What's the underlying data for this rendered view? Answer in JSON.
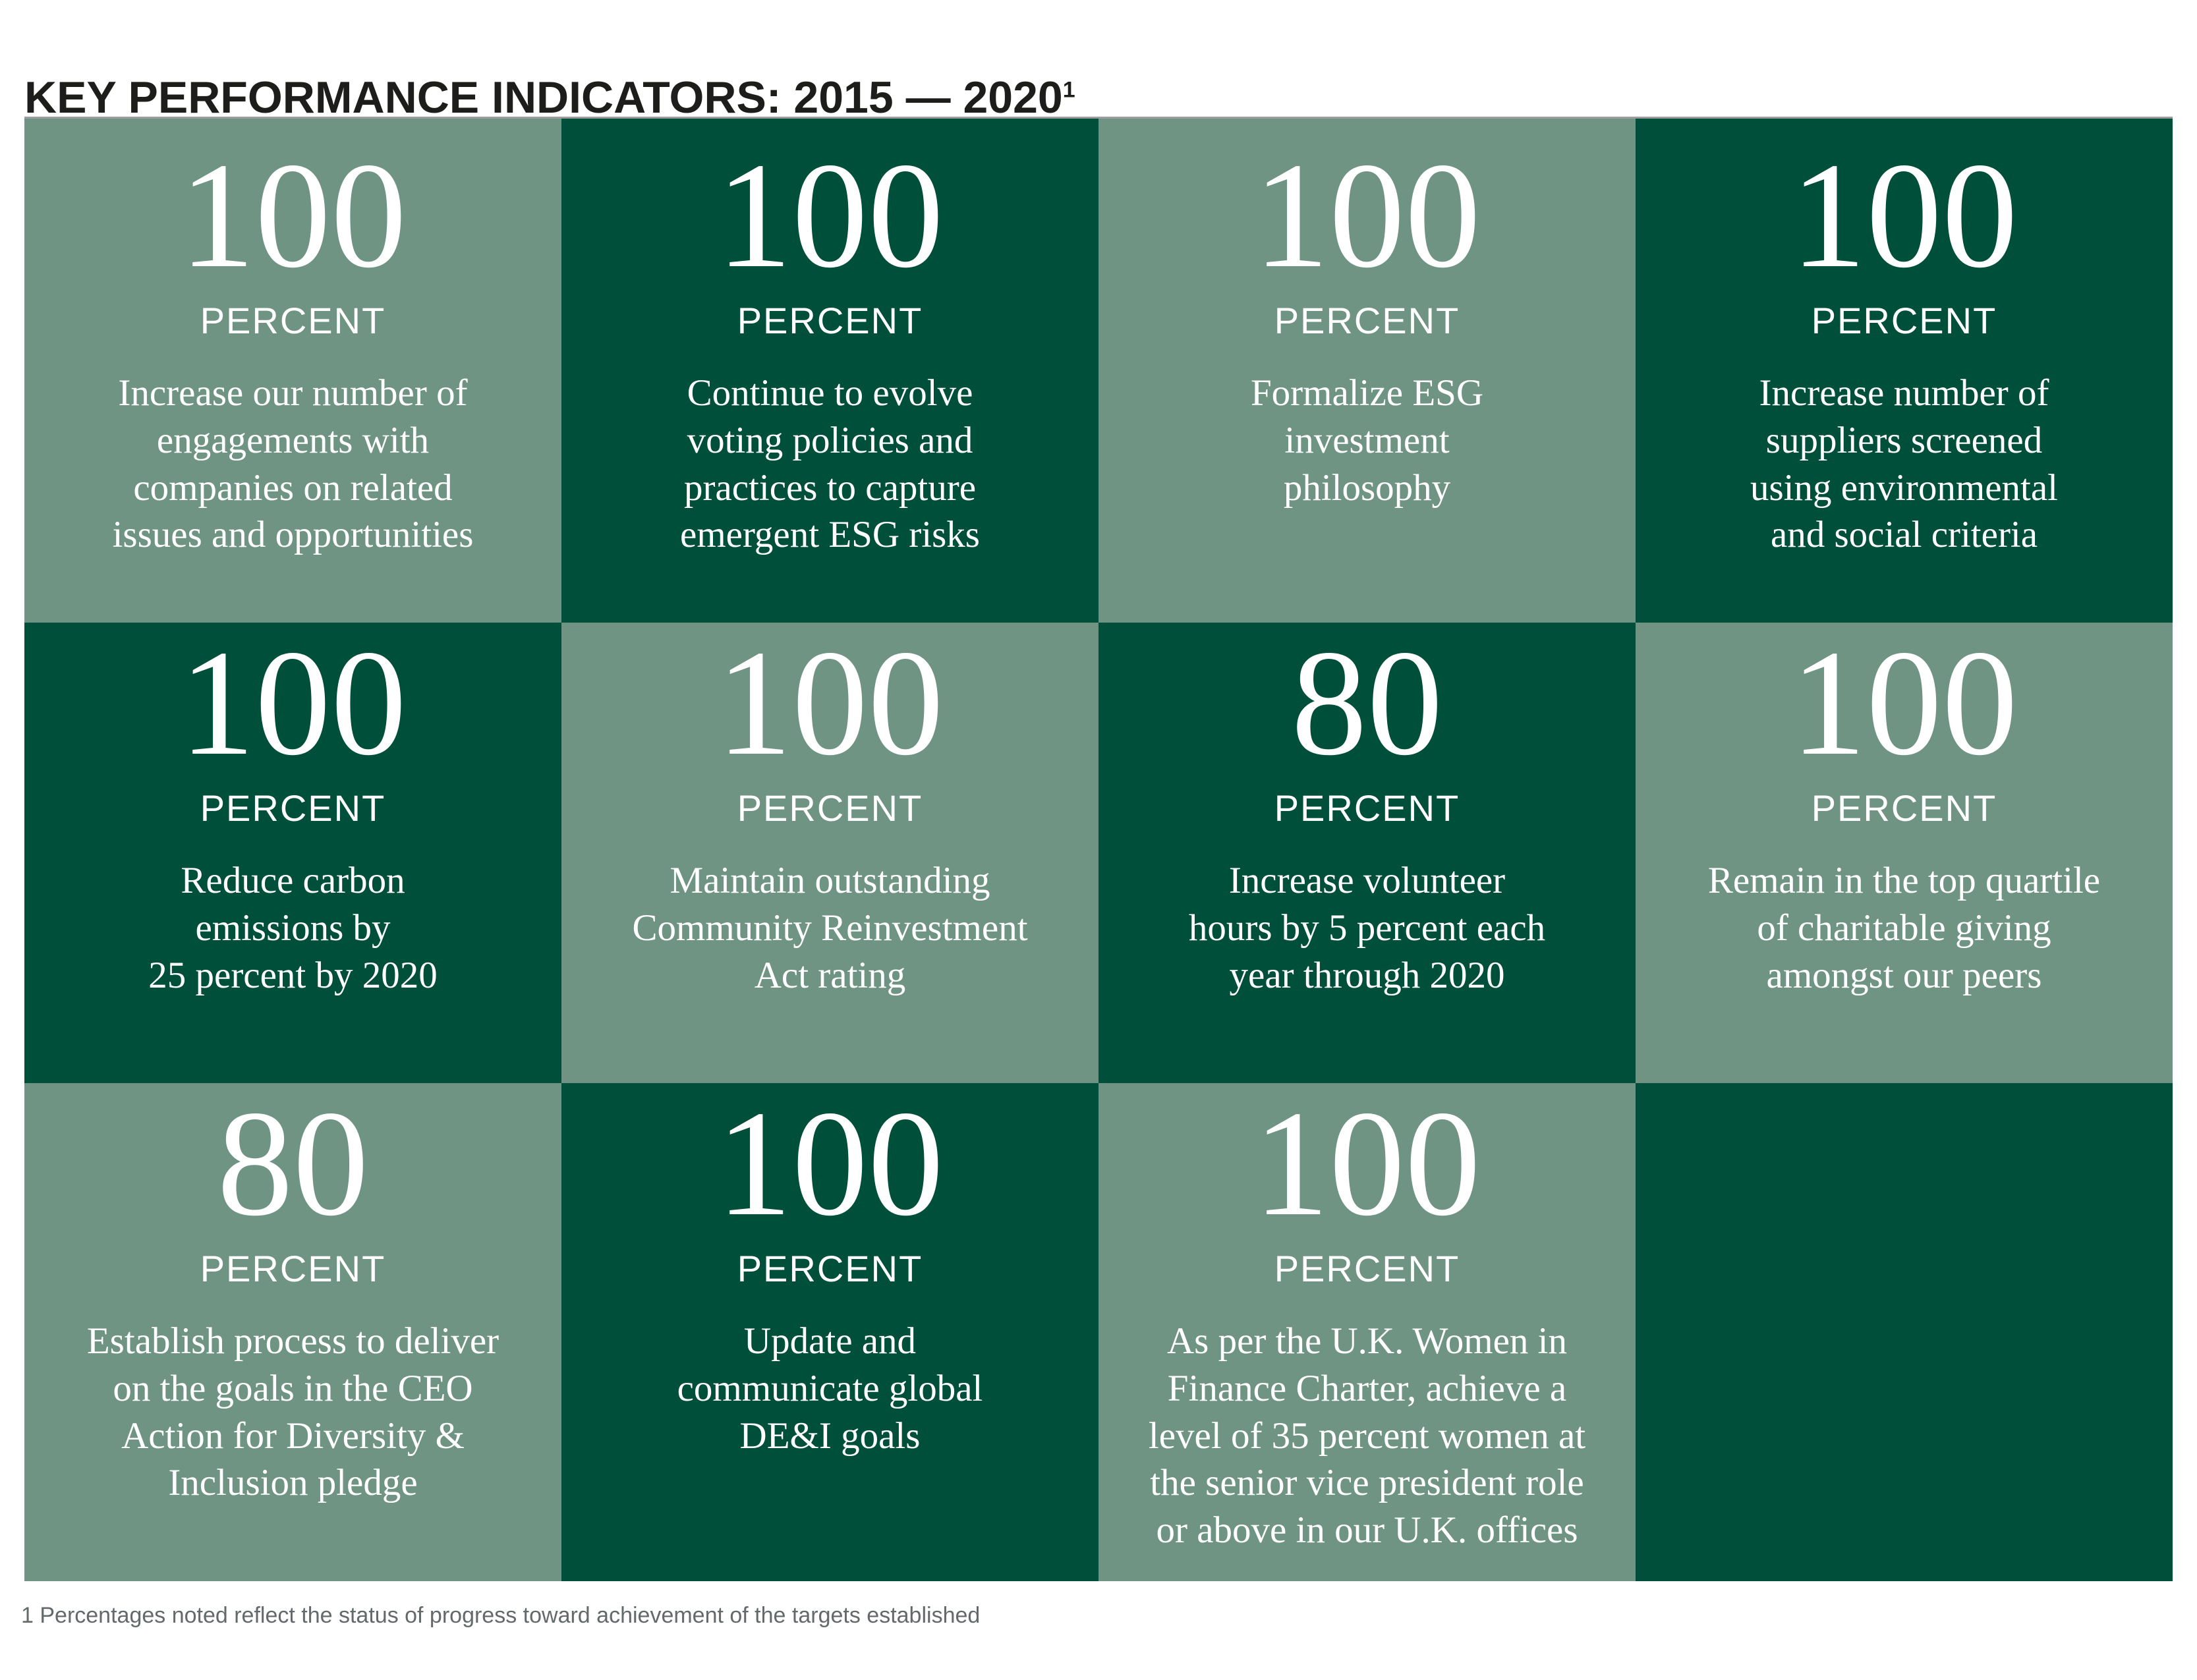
{
  "page": {
    "title": "KEY PERFORMANCE INDICATORS: 2015 — 2020",
    "title_superscript": "1",
    "footnote": "1 Percentages noted reflect the status of progress toward achievement of the targets established"
  },
  "colors": {
    "dark_green": "#004F3A",
    "sage_green": "#6F9484",
    "tile_text": "#FFFFFF",
    "title_text": "#1D1D1B",
    "footnote_text": "#64696B",
    "grid_top_rule": "#9C9EA0"
  },
  "kpi_grid": {
    "columns": 4,
    "rows": 3,
    "cells": [
      {
        "value": "100",
        "unit": "PERCENT",
        "theme": "light",
        "description": "Increase our number of\nengagements with\ncompanies on related\nissues and opportunities"
      },
      {
        "value": "100",
        "unit": "PERCENT",
        "theme": "dark",
        "description": "Continue to evolve\nvoting policies and\npractices to capture\nemergent ESG risks"
      },
      {
        "value": "100",
        "unit": "PERCENT",
        "theme": "light",
        "description": "Formalize ESG\ninvestment\nphilosophy"
      },
      {
        "value": "100",
        "unit": "PERCENT",
        "theme": "dark",
        "description": "Increase number of\nsuppliers screened\nusing environmental\nand social criteria"
      },
      {
        "value": "100",
        "unit": "PERCENT",
        "theme": "dark",
        "description": "Reduce carbon\nemissions by\n25 percent by 2020"
      },
      {
        "value": "100",
        "unit": "PERCENT",
        "theme": "light",
        "description": "Maintain outstanding\nCommunity Reinvestment\nAct rating"
      },
      {
        "value": "80",
        "unit": "PERCENT",
        "theme": "dark",
        "description": "Increase volunteer\nhours by 5 percent each\nyear through 2020"
      },
      {
        "value": "100",
        "unit": "PERCENT",
        "theme": "light",
        "description": "Remain in the top quartile\nof charitable giving\namongst our peers"
      },
      {
        "value": "80",
        "unit": "PERCENT",
        "theme": "light",
        "description": "Establish process to deliver\non the goals in the CEO\nAction for Diversity &\nInclusion pledge"
      },
      {
        "value": "100",
        "unit": "PERCENT",
        "theme": "dark",
        "description": "Update and\ncommunicate global\nDE&I goals"
      },
      {
        "value": "100",
        "unit": "PERCENT",
        "theme": "light",
        "description": "As per the U.K. Women in\nFinance Charter, achieve a\nlevel of 35 percent women at\nthe senior vice president role\nor above in our U.K. offices"
      },
      {
        "value": "",
        "unit": "",
        "theme": "dark",
        "description": ""
      }
    ]
  }
}
